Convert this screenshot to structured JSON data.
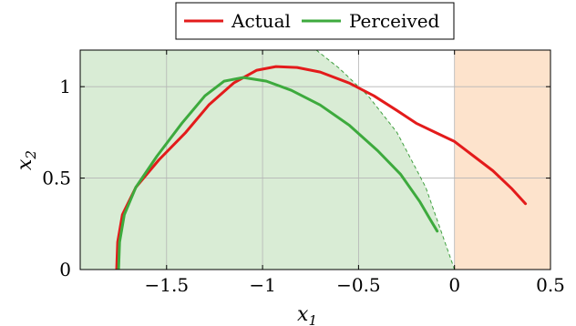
{
  "chart_data": {
    "type": "line",
    "xlabel": "x1",
    "ylabel": "x2",
    "xlim": [
      -1.95,
      0.5
    ],
    "ylim": [
      0,
      1.2
    ],
    "xticks": [
      -1.5,
      -1,
      -0.5,
      0,
      0.5
    ],
    "yticks": [
      0,
      0.5,
      1
    ],
    "x_tick_labels": [
      "−1.5",
      "−1",
      "−0.5",
      "0",
      "0.5"
    ],
    "y_tick_labels": [
      "0",
      "0.5",
      "1"
    ],
    "grid": true,
    "legend_position": "top-center",
    "regions": [
      {
        "kind": "safe-set",
        "color": "#d9ecd5",
        "boundary_color": "#3f9f3f",
        "boundary_style": "dashed"
      },
      {
        "kind": "unsafe-x1-positive",
        "x_from": 0,
        "x_to": 0.5,
        "color": "#fde3cc"
      }
    ],
    "safe_boundary": {
      "x": [
        -0.72,
        -0.6,
        -0.45,
        -0.3,
        -0.15,
        0
      ],
      "y": [
        1.2,
        1.1,
        0.95,
        0.75,
        0.45,
        0
      ]
    },
    "series": [
      {
        "name": "Actual",
        "color": "#e31b1b",
        "x": [
          -1.76,
          -1.755,
          -1.73,
          -1.66,
          -1.54,
          -1.4,
          -1.28,
          -1.15,
          -1.03,
          -0.93,
          -0.82,
          -0.7,
          -0.55,
          -0.42,
          -0.3,
          -0.2,
          -0.1,
          0.0,
          0.1,
          0.2,
          0.3,
          0.37
        ],
        "y": [
          0.0,
          0.15,
          0.3,
          0.45,
          0.6,
          0.75,
          0.9,
          1.02,
          1.09,
          1.11,
          1.105,
          1.08,
          1.02,
          0.95,
          0.87,
          0.8,
          0.75,
          0.7,
          0.62,
          0.54,
          0.44,
          0.36
        ]
      },
      {
        "name": "Perceived",
        "color": "#3daa3d",
        "x": [
          -1.75,
          -1.745,
          -1.72,
          -1.66,
          -1.55,
          -1.42,
          -1.3,
          -1.2,
          -1.1,
          -0.98,
          -0.85,
          -0.7,
          -0.55,
          -0.4,
          -0.28,
          -0.18,
          -0.13,
          -0.09
        ],
        "y": [
          0.0,
          0.15,
          0.3,
          0.45,
          0.62,
          0.8,
          0.95,
          1.03,
          1.05,
          1.03,
          0.98,
          0.9,
          0.79,
          0.65,
          0.52,
          0.37,
          0.28,
          0.21
        ]
      }
    ]
  }
}
